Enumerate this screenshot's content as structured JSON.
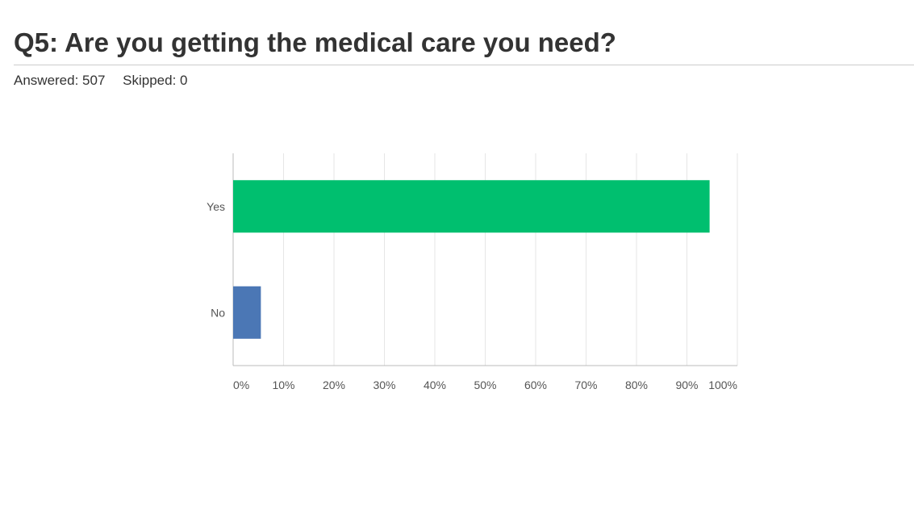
{
  "question": {
    "title": "Q5: Are you getting the medical care you need?",
    "answered": "Answered: 507",
    "skipped": "Skipped: 0"
  },
  "chart_data": {
    "type": "bar",
    "orientation": "horizontal",
    "categories": [
      "Yes",
      "No"
    ],
    "values": [
      94.5,
      5.5
    ],
    "value_unit": "%",
    "colors": [
      "#00bf6f",
      "#4b77b5"
    ],
    "xlim": [
      0,
      100
    ],
    "x_ticks": [
      "0%",
      "10%",
      "20%",
      "30%",
      "40%",
      "50%",
      "60%",
      "70%",
      "80%",
      "90%",
      "100%"
    ],
    "grid": true,
    "legend": "none",
    "title": "",
    "xlabel": "",
    "ylabel": ""
  }
}
